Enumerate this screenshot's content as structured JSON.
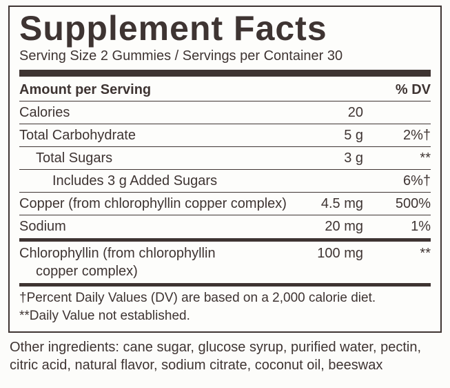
{
  "panel": {
    "title": "Supplement Facts",
    "serving_line": "Serving Size 2 Gummies / Servings per Container 30",
    "header": {
      "col1": "Amount per Serving",
      "col3": "% DV"
    },
    "rows_top": [
      {
        "name": "Calories",
        "amount": "20",
        "dv": "",
        "indent": 0,
        "rule_after": true
      },
      {
        "name": "Total Carbohydrate",
        "amount": "5 g",
        "dv": "2%†",
        "indent": 0,
        "rule_after": true
      },
      {
        "name": "Total Sugars",
        "amount": "3 g",
        "dv": "**",
        "indent": 1,
        "rule_after": true
      },
      {
        "name": "Includes 3 g Added Sugars",
        "amount": "",
        "dv": "6%†",
        "indent": 2,
        "rule_after": true
      },
      {
        "name": "Copper (from chlorophyllin copper complex)",
        "amount": "4.5 mg",
        "dv": "500%",
        "indent": 0,
        "rule_after": true
      },
      {
        "name": "Sodium",
        "amount": "20 mg",
        "dv": "1%",
        "indent": 0,
        "rule_after": false
      }
    ],
    "rows_bottom": [
      {
        "name": "Chlorophyllin (from chlorophyllin",
        "name_cont": "copper complex)",
        "amount": "100 mg",
        "dv": "**",
        "indent": 0
      }
    ],
    "footnote1": "†Percent Daily Values (DV) are based on a 2,000 calorie diet.",
    "footnote2": "**Daily Value not established."
  },
  "other_ingredients": "Other ingredients: cane sugar, glucose syrup, purified water, pectin, citric acid, natural flavor, sodium citrate, coconut oil, beeswax",
  "colors": {
    "text": "#3e3432",
    "bg": "#fdfdfb"
  }
}
